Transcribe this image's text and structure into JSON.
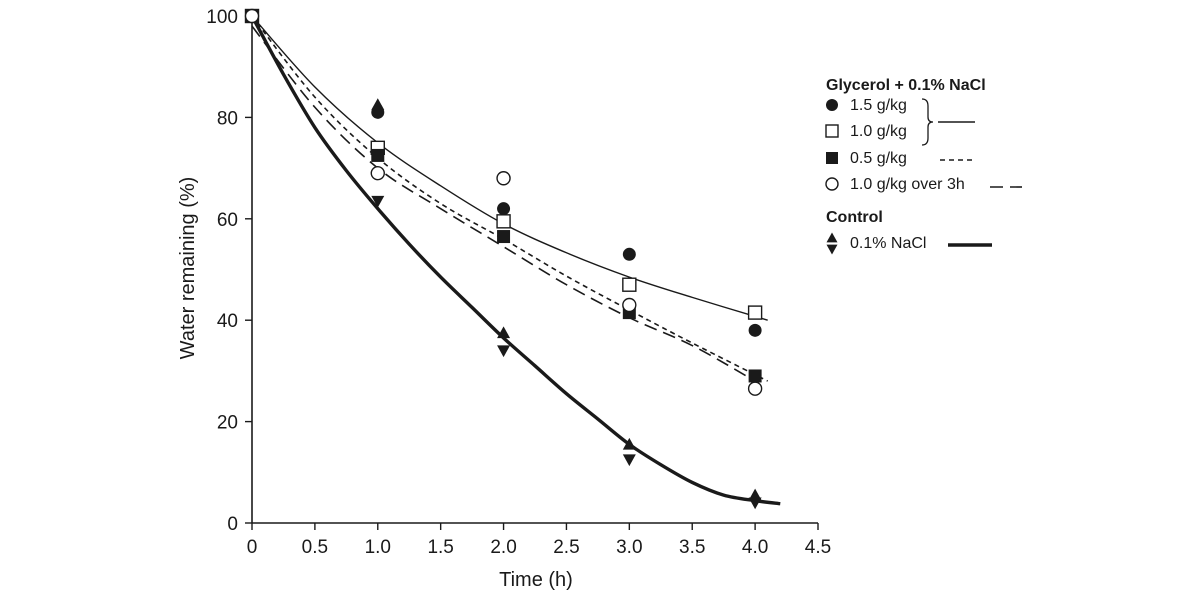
{
  "chart_data": {
    "type": "scatter",
    "xlabel": "Time (h)",
    "ylabel": "Water remaining (%)",
    "xlim": [
      0,
      4.5
    ],
    "ylim": [
      0,
      100
    ],
    "xticks": [
      "0",
      "0.5",
      "1.0",
      "1.5",
      "2.0",
      "2.5",
      "3.0",
      "3.5",
      "4.0",
      "4.5"
    ],
    "xtick_values": [
      0,
      0.5,
      1.0,
      1.5,
      2.0,
      2.5,
      3.0,
      3.5,
      4.0,
      4.5
    ],
    "yticks": [
      "0",
      "20",
      "40",
      "60",
      "80",
      "100"
    ],
    "ytick_values": [
      0,
      20,
      40,
      60,
      80,
      100
    ],
    "grid": false,
    "legend_position": "right",
    "legend": {
      "group1_title": "Glycerol + 0.1% NaCl",
      "group2_title": "Control",
      "entries": [
        {
          "label": "1.5 g/kg",
          "marker": "filled-circle",
          "line": "solid-thin"
        },
        {
          "label": "1.0 g/kg",
          "marker": "open-square",
          "line": "solid-thin"
        },
        {
          "label": "0.5 g/kg",
          "marker": "filled-square",
          "line": "short-dash"
        },
        {
          "label": "1.0 g/kg over 3h",
          "marker": "open-circle",
          "line": "long-dash"
        },
        {
          "label": "0.1% NaCl",
          "marker": "up-down-triangles",
          "line": "solid-thick"
        }
      ]
    },
    "series": [
      {
        "name": "1.5 g/kg",
        "marker": "filled-circle",
        "x": [
          0,
          1.0,
          2.0,
          3.0,
          4.0
        ],
        "y": [
          100,
          81,
          62,
          53,
          38
        ]
      },
      {
        "name": "1.0 g/kg",
        "marker": "open-square",
        "x": [
          0,
          1.0,
          2.0,
          3.0,
          4.0
        ],
        "y": [
          100,
          74,
          59.5,
          47,
          41.5
        ]
      },
      {
        "name": "0.5 g/kg",
        "marker": "filled-square",
        "x": [
          0,
          1.0,
          2.0,
          3.0,
          4.0
        ],
        "y": [
          100,
          72.5,
          56.5,
          41.5,
          29
        ]
      },
      {
        "name": "1.0 g/kg over 3h",
        "marker": "open-circle",
        "x": [
          0,
          1.0,
          2.0,
          3.0,
          4.0
        ],
        "y": [
          100,
          69,
          68,
          43,
          26.5
        ]
      },
      {
        "name": "0.1% NaCl",
        "marker": "triangle-up",
        "x": [
          1.0,
          2.0,
          3.0,
          4.0
        ],
        "y": [
          82.5,
          37.5,
          15.5,
          5.5
        ]
      },
      {
        "name": "0.1% NaCl",
        "marker": "triangle-down",
        "x": [
          1.0,
          2.0,
          3.0,
          4.0
        ],
        "y": [
          63.5,
          34,
          12.5,
          4
        ]
      }
    ],
    "fit_curves": [
      {
        "style": "solid-thin",
        "x": [
          0,
          0.5,
          1.0,
          1.5,
          2.0,
          2.5,
          3.0,
          3.5,
          4.1
        ],
        "y": [
          100,
          86,
          75,
          66.5,
          59,
          53.3,
          48.5,
          44.5,
          40
        ]
      },
      {
        "style": "short-dash",
        "x": [
          0,
          0.5,
          1.0,
          1.5,
          2.0,
          2.5,
          3.0,
          3.5,
          4.1
        ],
        "y": [
          100,
          84,
          72,
          63,
          56,
          48.7,
          42,
          35.5,
          28
        ]
      },
      {
        "style": "long-dash",
        "x": [
          0,
          0.5,
          1.0,
          1.5,
          2.0,
          2.5,
          3.0,
          3.5,
          4.0
        ],
        "y": [
          98,
          82,
          70,
          62,
          54.5,
          47,
          40.5,
          35,
          28
        ]
      },
      {
        "style": "solid-thick",
        "x": [
          0,
          0.25,
          0.5,
          0.75,
          1.0,
          1.25,
          1.5,
          1.75,
          2.0,
          2.25,
          2.5,
          2.75,
          3.0,
          3.25,
          3.5,
          3.75,
          4.0,
          4.2
        ],
        "y": [
          100,
          88.5,
          78,
          69.5,
          62,
          55,
          48.5,
          42.5,
          36.5,
          31,
          25.5,
          20.5,
          15.5,
          11.5,
          8,
          5.5,
          4.4,
          3.8
        ]
      }
    ]
  }
}
